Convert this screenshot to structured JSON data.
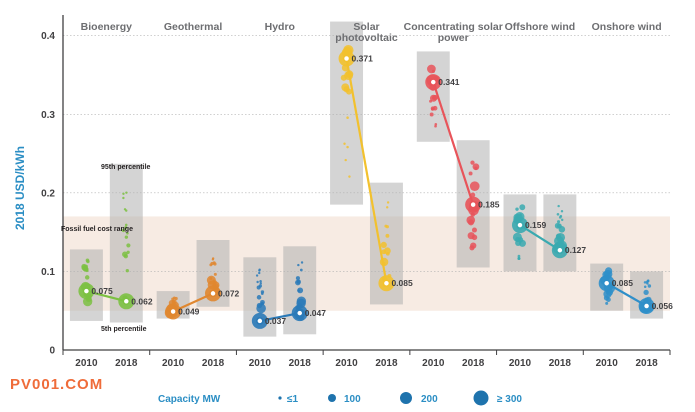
{
  "chart_data": {
    "type": "scatter",
    "title": "",
    "ylabel": "2018 USD/kWh",
    "ylim": [
      0,
      0.42
    ],
    "yticks": [
      0,
      0.1,
      0.2,
      0.3,
      0.4
    ],
    "ytick_labels": [
      "0",
      "0.1",
      "0.2",
      "0.3",
      "0.4"
    ],
    "fossil_fuel_cost_range": [
      0.05,
      0.17
    ],
    "fossil_fuel_cost_range_label": "Fossil fuel cost range",
    "percentile_labels": {
      "p95": "95th percentile",
      "p5": "5th percentile"
    },
    "technologies": [
      {
        "name": "Bioenergy",
        "color": "#7cc142",
        "y2010": 0.075,
        "y2018": 0.062,
        "label2010": "0.075",
        "label2018": "0.062",
        "band2010": [
          0.037,
          0.128
        ],
        "band2018": [
          0.035,
          0.237
        ]
      },
      {
        "name": "Geothermal",
        "color": "#e0872f",
        "y2010": 0.049,
        "y2018": 0.072,
        "label2010": "0.049",
        "label2018": "0.072",
        "band2010": [
          0.04,
          0.075
        ],
        "band2018": [
          0.055,
          0.14
        ]
      },
      {
        "name": "Hydro",
        "color": "#2a7ab8",
        "y2010": 0.037,
        "y2018": 0.047,
        "label2010": "0.037",
        "label2018": "0.047",
        "band2010": [
          0.017,
          0.118
        ],
        "band2018": [
          0.02,
          0.132
        ]
      },
      {
        "name": "Solar photovoltaic",
        "color": "#f2c12e",
        "y2010": 0.371,
        "y2018": 0.085,
        "label2010": "0.371",
        "label2018": "0.085",
        "band2010": [
          0.185,
          0.418
        ],
        "band2018": [
          0.058,
          0.213
        ]
      },
      {
        "name": "Concentrating solar power",
        "color": "#e8545a",
        "y2010": 0.341,
        "y2018": 0.185,
        "label2010": "0.341",
        "label2018": "0.185",
        "band2010": [
          0.265,
          0.38
        ],
        "band2018": [
          0.105,
          0.267
        ]
      },
      {
        "name": "Offshore wind",
        "color": "#3aaab0",
        "y2010": 0.159,
        "y2018": 0.127,
        "label2010": "0.159",
        "label2018": "0.127",
        "band2010": [
          0.1,
          0.198
        ],
        "band2018": [
          0.1,
          0.198
        ]
      },
      {
        "name": "Onshore wind",
        "color": "#2f8fc9",
        "y2010": 0.085,
        "y2018": 0.056,
        "label2010": "0.085",
        "label2018": "0.056",
        "band2010": [
          0.05,
          0.11
        ],
        "band2018": [
          0.04,
          0.1
        ]
      }
    ],
    "xtick_labels": [
      "2010",
      "2018"
    ],
    "legend": {
      "title": "Capacity MW",
      "items": [
        "≤1",
        "100",
        "200",
        "≥ 300"
      ]
    }
  },
  "watermark": "PV001.COM"
}
